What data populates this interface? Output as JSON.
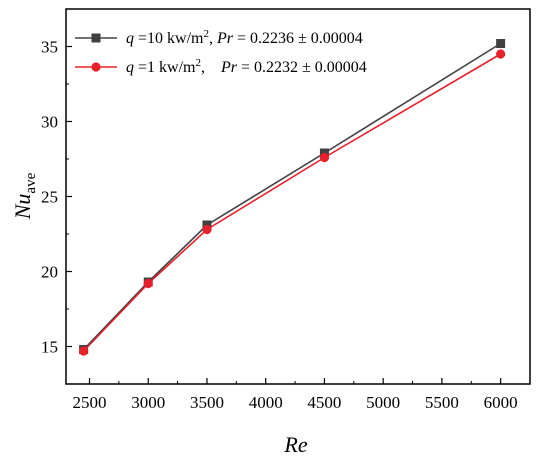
{
  "chart_data": {
    "type": "line",
    "xlabel": "Re",
    "ylabel": {
      "main": "Nu",
      "sub": "ave"
    },
    "xlim": [
      2300,
      6250
    ],
    "ylim": [
      12.5,
      37.5
    ],
    "xticks": [
      2500,
      3000,
      3500,
      4000,
      4500,
      5000,
      5500,
      6000
    ],
    "yticks": [
      15,
      20,
      25,
      30,
      35
    ],
    "grid": false,
    "legend_position": "top-left",
    "series": [
      {
        "name": "q =10 kw/m², Pr = 0.2236 ± 0.00004",
        "legend": {
          "q": "q",
          "q_value": " =10 kw/m",
          "pr": "Pr",
          "pr_value": " = 0.2236 ± 0.00004"
        },
        "color": "#404040",
        "marker": "square",
        "x": [
          2450,
          3000,
          3500,
          4500,
          6000
        ],
        "y": [
          14.8,
          19.3,
          23.1,
          27.9,
          35.2
        ]
      },
      {
        "name": "q =1 kw/m², Pr = 0.2232 ± 0.00004",
        "legend": {
          "q": "q",
          "q_value": " =1 kw/m",
          "pr": "Pr",
          "pr_value": " = 0.2232 ± 0.00004"
        },
        "color": "#e8202a",
        "marker": "circle",
        "x": [
          2450,
          3000,
          3500,
          4500,
          6000
        ],
        "y": [
          14.7,
          19.2,
          22.8,
          27.6,
          34.5
        ]
      }
    ]
  }
}
